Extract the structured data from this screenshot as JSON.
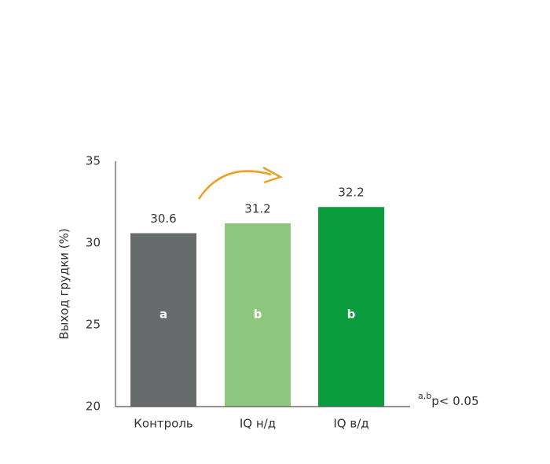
{
  "chart_data": {
    "type": "bar",
    "y_label": "Выход грудки (%)",
    "categories": [
      "Контроль",
      "IQ н/д",
      "IQ в/д"
    ],
    "values": [
      30.6,
      31.2,
      32.2
    ],
    "colors": [
      "#676b6b",
      "#8fc67e",
      "#0a9c3d"
    ],
    "bar_labels": [
      "a",
      "b",
      "b"
    ],
    "ylim": [
      20,
      35
    ],
    "yticks": [
      20,
      25,
      30,
      35
    ],
    "significance_note": {
      "superscript": "a,b",
      "text": "p< 0.05"
    }
  }
}
